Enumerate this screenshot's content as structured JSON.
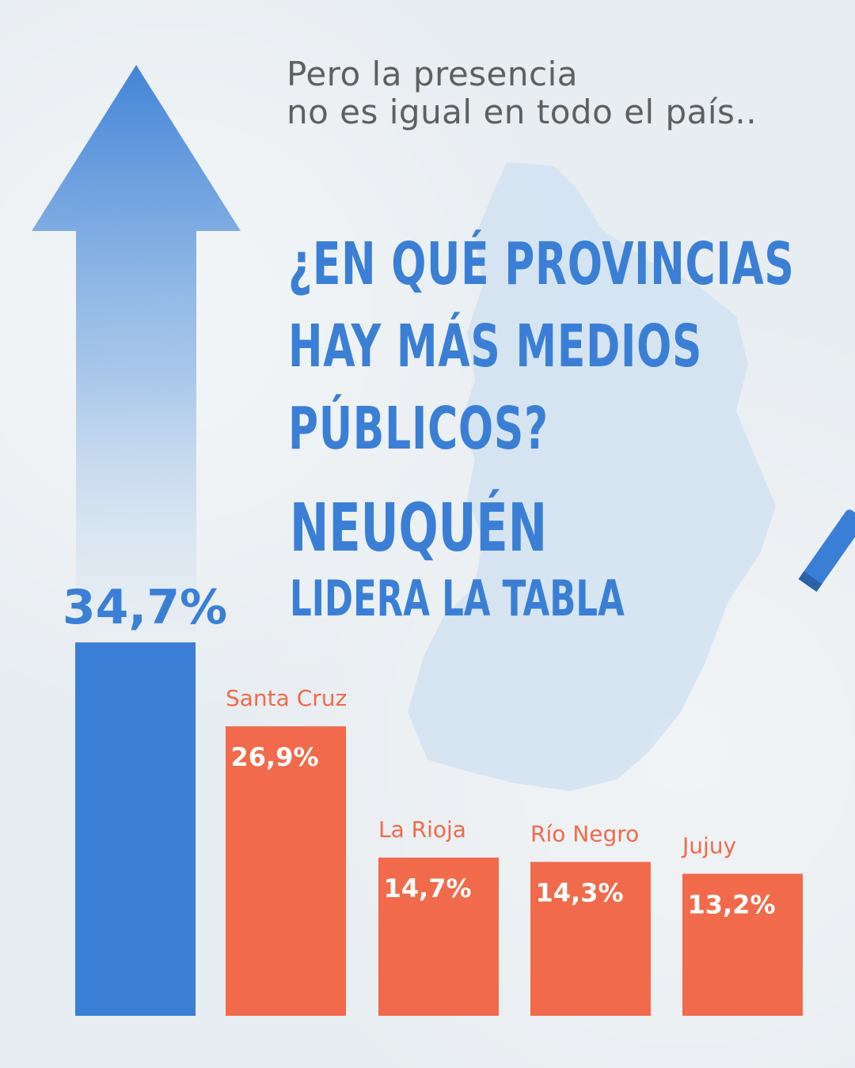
{
  "intro": {
    "line1": "Pero la presencia",
    "line2": "no es igual en todo el país.."
  },
  "question": {
    "line1": "¿EN QUÉ PROVINCIAS",
    "line2": "HAY MÁS MEDIOS",
    "line3": "PÚBLICOS?"
  },
  "leader": {
    "name": "NEUQUÉN",
    "subtitle": "LIDERA LA TABLA"
  },
  "colors": {
    "leader_bar": "#3a7fd5",
    "other_bars": "#f06a4b",
    "text_gray": "#5f5f5f"
  },
  "chart_data": {
    "type": "bar",
    "categories": [
      "Neuquén",
      "Santa Cruz",
      "La Rioja",
      "Río Negro",
      "Jujuy"
    ],
    "values": [
      34.7,
      26.9,
      14.7,
      14.3,
      13.2
    ],
    "value_labels": [
      "34,7%",
      "26,9%",
      "14,7%",
      "14,3%",
      "13,2%"
    ],
    "category_labels": [
      "",
      "Santa Cruz",
      "La Rioja",
      "Río Negro",
      "Jujuy"
    ],
    "unit": "%",
    "ylim": [
      0,
      34.7
    ],
    "grid": false,
    "legend": "none"
  }
}
